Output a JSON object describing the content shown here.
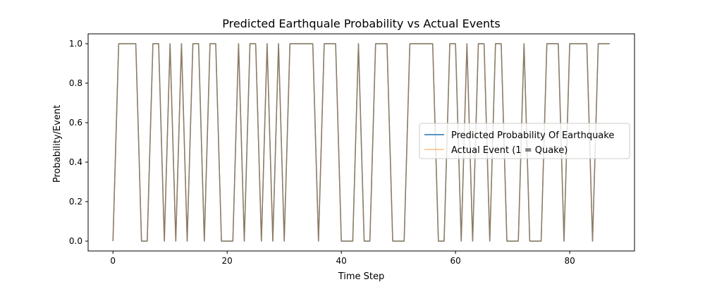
{
  "chart_data": {
    "type": "line",
    "title": "Predicted Earthquale Probability vs Actual Events",
    "xlabel": "Time Step",
    "ylabel": "Probability/Event",
    "xlim": [
      -4.35,
      91.35
    ],
    "ylim": [
      -0.05,
      1.05
    ],
    "xticks": [
      0,
      20,
      40,
      60,
      80
    ],
    "yticks": [
      0.0,
      0.2,
      0.4,
      0.6,
      0.8,
      1.0
    ],
    "xtick_labels": [
      "0",
      "20",
      "40",
      "60",
      "80"
    ],
    "ytick_labels": [
      "0.0",
      "0.2",
      "0.4",
      "0.6",
      "0.8",
      "1.0"
    ],
    "grid": false,
    "legend_position": "center-right",
    "series": [
      {
        "name": "Predicted Probability Of Earthquake",
        "color": "#1f77b4",
        "opacity": 1.0,
        "x": [
          0,
          1,
          2,
          3,
          4,
          5,
          6,
          7,
          8,
          9,
          10,
          11,
          12,
          13,
          14,
          15,
          16,
          17,
          18,
          19,
          20,
          21,
          22,
          23,
          24,
          25,
          26,
          27,
          28,
          29,
          30,
          31,
          32,
          33,
          34,
          35,
          36,
          37,
          38,
          39,
          40,
          41,
          42,
          43,
          44,
          45,
          46,
          47,
          48,
          49,
          50,
          51,
          52,
          53,
          54,
          55,
          56,
          57,
          58,
          59,
          60,
          61,
          62,
          63,
          64,
          65,
          66,
          67,
          68,
          69,
          70,
          71,
          72,
          73,
          74,
          75,
          76,
          77,
          78,
          79,
          80,
          81,
          82,
          83,
          84,
          85,
          86,
          87
        ],
        "y": [
          0,
          1,
          1,
          1,
          1,
          0,
          0,
          1,
          1,
          0,
          1,
          0,
          1,
          0,
          1,
          1,
          0,
          1,
          1,
          0,
          0,
          0,
          1,
          0,
          1,
          1,
          0,
          1,
          0,
          1,
          0,
          1,
          1,
          1,
          1,
          1,
          0,
          1,
          1,
          1,
          0,
          0,
          0,
          1,
          0,
          0,
          1,
          1,
          1,
          0,
          0,
          0,
          1,
          1,
          1,
          1,
          1,
          0,
          0,
          1,
          1,
          0,
          1,
          0,
          1,
          1,
          0,
          1,
          1,
          0,
          0,
          0,
          1,
          0,
          0,
          0,
          1,
          1,
          1,
          0,
          1,
          1,
          1,
          1,
          0,
          1,
          1,
          1
        ]
      },
      {
        "name": "Actual Event (1 = Quake)",
        "color": "#ff7f0e",
        "opacity": 0.5,
        "x": [
          0,
          1,
          2,
          3,
          4,
          5,
          6,
          7,
          8,
          9,
          10,
          11,
          12,
          13,
          14,
          15,
          16,
          17,
          18,
          19,
          20,
          21,
          22,
          23,
          24,
          25,
          26,
          27,
          28,
          29,
          30,
          31,
          32,
          33,
          34,
          35,
          36,
          37,
          38,
          39,
          40,
          41,
          42,
          43,
          44,
          45,
          46,
          47,
          48,
          49,
          50,
          51,
          52,
          53,
          54,
          55,
          56,
          57,
          58,
          59,
          60,
          61,
          62,
          63,
          64,
          65,
          66,
          67,
          68,
          69,
          70,
          71,
          72,
          73,
          74,
          75,
          76,
          77,
          78,
          79,
          80,
          81,
          82,
          83,
          84,
          85,
          86,
          87
        ],
        "y": [
          0,
          1,
          1,
          1,
          1,
          0,
          0,
          1,
          1,
          0,
          1,
          0,
          1,
          0,
          1,
          1,
          0,
          1,
          1,
          0,
          0,
          0,
          1,
          0,
          1,
          1,
          0,
          1,
          0,
          1,
          0,
          1,
          1,
          1,
          1,
          1,
          0,
          1,
          1,
          1,
          0,
          0,
          0,
          1,
          0,
          0,
          1,
          1,
          1,
          0,
          0,
          0,
          1,
          1,
          1,
          1,
          1,
          0,
          0,
          1,
          1,
          0,
          1,
          0,
          1,
          1,
          0,
          1,
          1,
          0,
          0,
          0,
          1,
          0,
          0,
          0,
          1,
          1,
          1,
          0,
          1,
          1,
          1,
          1,
          0,
          1,
          1,
          1
        ]
      }
    ]
  }
}
